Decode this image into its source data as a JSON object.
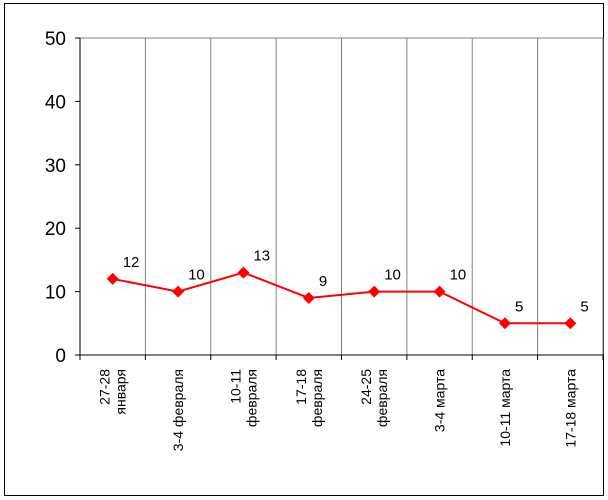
{
  "chart_data": {
    "type": "line",
    "categories": [
      [
        "27-28",
        "января"
      ],
      [
        "3-4 февраля"
      ],
      [
        "10-11",
        "февраля"
      ],
      [
        "17-18",
        "февраля"
      ],
      [
        "24-25",
        "февраля"
      ],
      [
        "3-4 марта"
      ],
      [
        "10-11 марта"
      ],
      [
        "17-18 марта"
      ]
    ],
    "values": [
      12,
      10,
      13,
      9,
      10,
      10,
      5,
      5
    ],
    "data_labels": [
      "12",
      "10",
      "13",
      "9",
      "10",
      "10",
      "5",
      "5"
    ],
    "yticks": [
      "0",
      "10",
      "20",
      "30",
      "40",
      "50"
    ],
    "ylim": [
      0,
      50
    ],
    "title": "",
    "xlabel": "",
    "ylabel": "",
    "grid": "vertical",
    "legend": "none",
    "colors": {
      "series": "#ff0000",
      "grid": "#808080",
      "axis": "#000000"
    }
  }
}
